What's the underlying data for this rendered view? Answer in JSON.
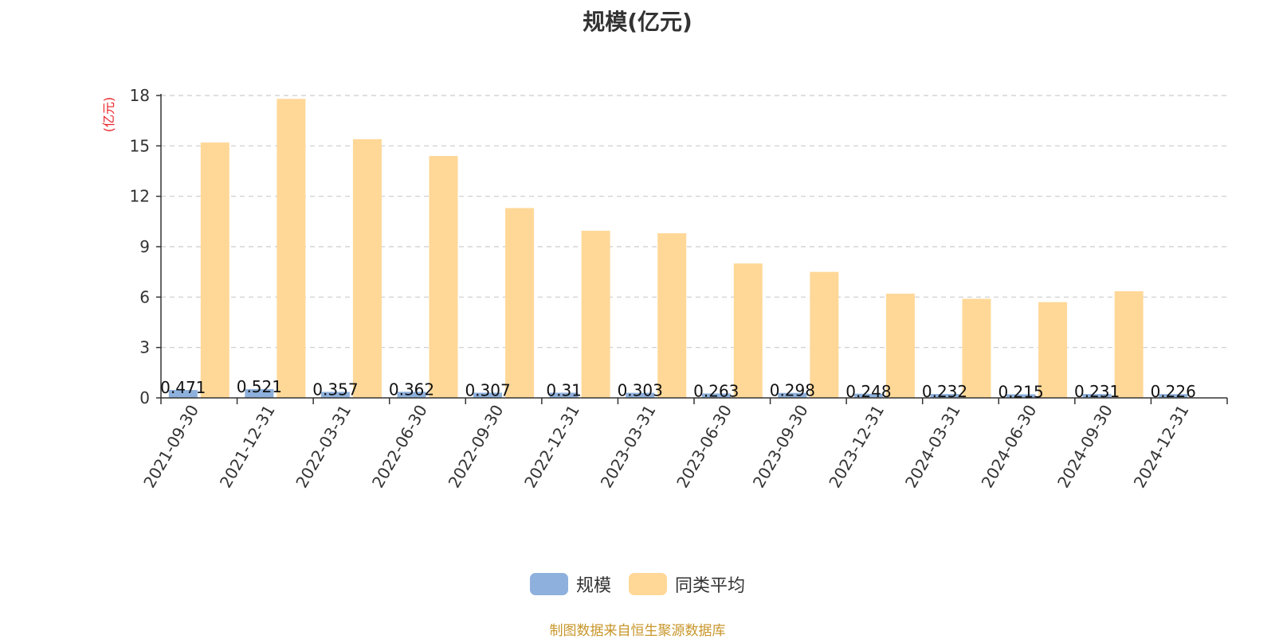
{
  "chart_data": {
    "type": "bar",
    "title": "规模(亿元)",
    "ylabel": "(亿元)",
    "ylim": [
      0,
      18
    ],
    "yticks": [
      0,
      3,
      6,
      9,
      12,
      15,
      18
    ],
    "grid": true,
    "legend_position": "bottom",
    "categories": [
      "2021-09-30",
      "2021-12-31",
      "2022-03-31",
      "2022-06-30",
      "2022-09-30",
      "2022-12-31",
      "2023-03-31",
      "2023-06-30",
      "2023-09-30",
      "2023-12-31",
      "2024-03-31",
      "2024-06-30",
      "2024-09-30",
      "2024-12-31"
    ],
    "series": [
      {
        "name": "规模",
        "color": "#8eb0dc",
        "values": [
          0.471,
          0.521,
          0.357,
          0.362,
          0.307,
          0.31,
          0.303,
          0.263,
          0.298,
          0.248,
          0.232,
          0.215,
          0.231,
          0.226
        ],
        "labels": [
          "0.471",
          "0.521",
          "0.357",
          "0.362",
          "0.307",
          "0.31",
          "0.303",
          "0.263",
          "0.298",
          "0.248",
          "0.232",
          "0.215",
          "0.231",
          "0.226"
        ]
      },
      {
        "name": "同类平均",
        "color": "#ffd898",
        "values": [
          15.2,
          17.8,
          15.4,
          14.4,
          11.3,
          9.95,
          9.8,
          8.0,
          7.5,
          6.2,
          5.9,
          5.7,
          6.35,
          null
        ]
      }
    ],
    "axis_color": "#333333",
    "grid_color": "#cccccc",
    "unit_color": "#e8262c"
  },
  "footer": {
    "source": "制图数据来自恒生聚源数据库"
  }
}
